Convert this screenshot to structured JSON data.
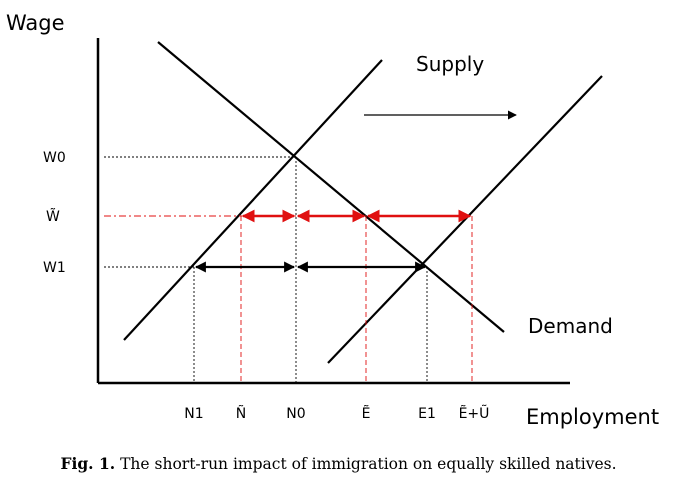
{
  "diagram": {
    "y_axis_title": "Wage",
    "x_axis_title": "Employment",
    "curves": {
      "supply_label": "Supply",
      "demand_label": "Demand"
    },
    "wage_levels": [
      "W0",
      "W̃",
      "W1"
    ],
    "employment_levels": [
      "N1",
      "Ñ",
      "N0",
      "Ẽ",
      "E1",
      "Ẽ+Ũ"
    ],
    "colors": {
      "lines": "#000000",
      "highlight": "#e01010"
    }
  },
  "caption": {
    "label": "Fig. 1.",
    "text": "The short-run impact of immigration on equally skilled natives."
  }
}
